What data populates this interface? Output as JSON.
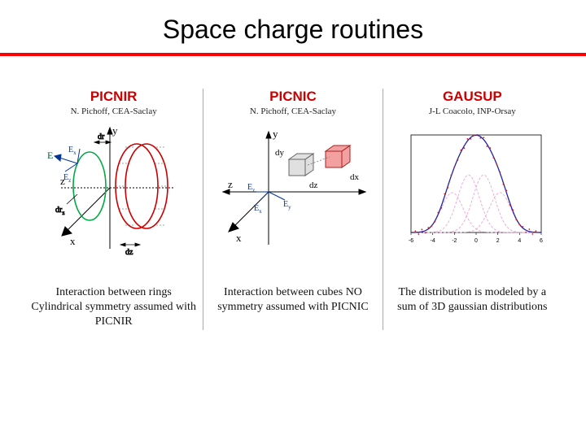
{
  "title": "Space charge routines",
  "title_color": "#000000",
  "rule_color": "#ff0000",
  "panels": [
    {
      "name": "PICNIR",
      "name_color": "#cc0000",
      "author": "N. Pichoff, CEA-Saclay",
      "caption": "Interaction between rings\nCylindrical symmetry assumed with PICNIR",
      "diagram": {
        "type": "rings-3d",
        "axes": [
          "x",
          "y",
          "z"
        ],
        "labels": [
          "E",
          "E_x",
          "E_z",
          "dr",
          "dr_z",
          "dz"
        ],
        "ring_colors": [
          "#00aa44",
          "#cc0000"
        ],
        "axis_color": "#000000",
        "label_color": "#006633",
        "field_label_color": "#003399"
      }
    },
    {
      "name": "PICNIC",
      "name_color": "#cc0000",
      "author": "N. Pichoff, CEA-Saclay",
      "caption": "Interaction between cubes\nNO symmetry assumed with PICNIC",
      "diagram": {
        "type": "cubes-3d",
        "axes": [
          "x",
          "y",
          "z"
        ],
        "labels": [
          "dx",
          "dy",
          "dz",
          "E_x",
          "E_y",
          "E_z"
        ],
        "cube_colors": [
          "#888888",
          "#dd3333"
        ],
        "axis_color": "#000000",
        "field_label_color": "#003399"
      }
    },
    {
      "name": "GAUSUP",
      "name_color": "#cc0000",
      "author": "J-L Coacolo, INP-Orsay",
      "caption": "The distribution is modeled by a sum of 3D gaussian distributions",
      "diagram": {
        "type": "gaussian-sum",
        "xlim": [
          -6,
          6
        ],
        "ylim": [
          0,
          0.22
        ],
        "xticks": [
          -6,
          -4,
          -2,
          0,
          2,
          4,
          6
        ],
        "gaussians": [
          {
            "mu": -2.2,
            "sigma": 1.0,
            "amp": 0.09,
            "color": "#ee99cc"
          },
          {
            "mu": -0.7,
            "sigma": 1.0,
            "amp": 0.13,
            "color": "#ee99cc"
          },
          {
            "mu": 0.7,
            "sigma": 1.0,
            "amp": 0.13,
            "color": "#ee99cc"
          },
          {
            "mu": 2.2,
            "sigma": 1.0,
            "amp": 0.09,
            "color": "#ee99cc"
          }
        ],
        "sum_color": "#2222aa",
        "points_color": "#cc2222",
        "axis_color": "#000000",
        "background": "#ffffff"
      }
    }
  ]
}
